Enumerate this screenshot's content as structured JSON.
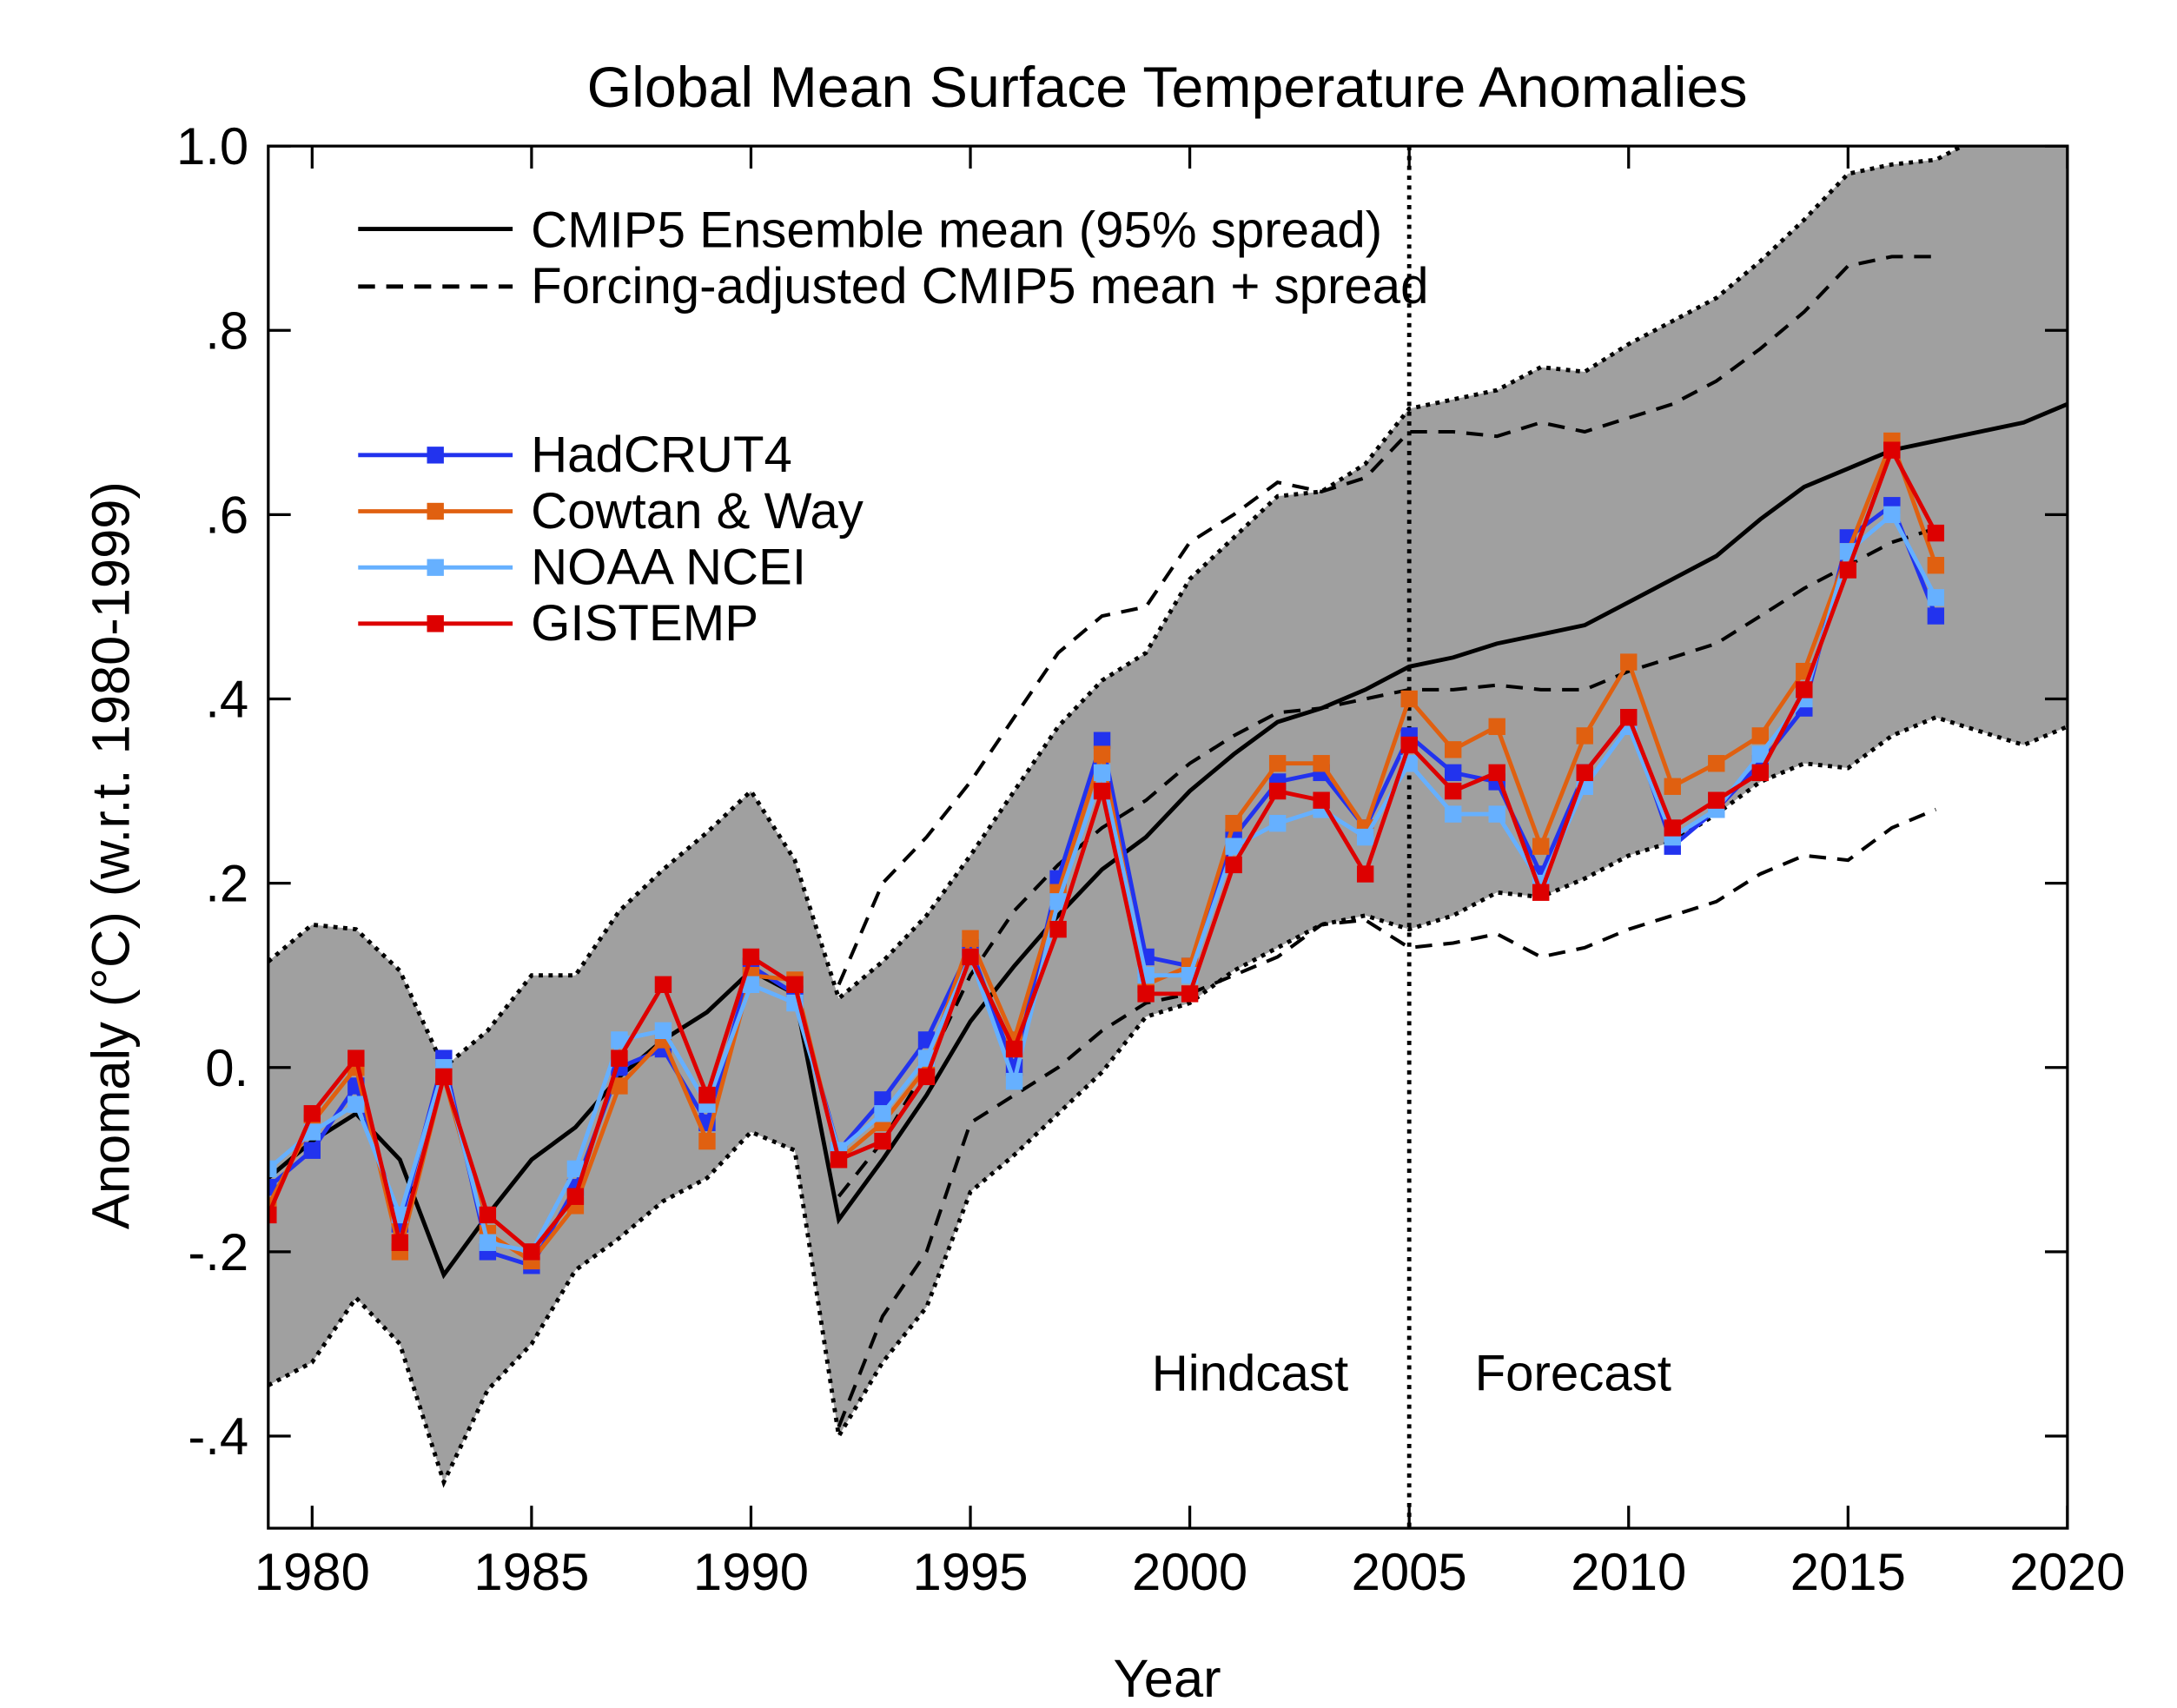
{
  "chart_data": {
    "type": "line",
    "title": "Global Mean Surface Temperature Anomalies",
    "xlabel": "Year",
    "ylabel": "Anomaly (°C) (w.r.t. 1980-1999)",
    "ylabel_parts": {
      "pre": "Anomaly (",
      "sup": "o",
      "post": "C) (w.r.t. 1980-1999)"
    },
    "xlim": [
      1979,
      2020
    ],
    "ylim": [
      -0.5,
      1.0
    ],
    "xticks": [
      1980,
      1985,
      1990,
      1995,
      2000,
      2005,
      2010,
      2015,
      2020
    ],
    "yticks": [
      -0.4,
      -0.2,
      0.0,
      0.2,
      0.4,
      0.6,
      0.8,
      1.0
    ],
    "ytick_labels": [
      "-.4",
      "-.2",
      "0.",
      ".2",
      ".4",
      ".6",
      ".8",
      "1.0"
    ],
    "grid": false,
    "legend_placement": "top-left",
    "annotations": {
      "hindcast": "Hindcast",
      "forecast": "Forecast",
      "divider_year": 2005
    },
    "model": {
      "legend_mean": "CMIP5 Ensemble mean (95% spread)",
      "legend_adjusted": "Forcing-adjusted CMIP5 mean + spread",
      "spread_color": "#a0a0a0",
      "years": [
        1979,
        1980,
        1981,
        1982,
        1983,
        1984,
        1985,
        1986,
        1987,
        1988,
        1989,
        1990,
        1991,
        1992,
        1993,
        1994,
        1995,
        1996,
        1997,
        1998,
        1999,
        2000,
        2001,
        2002,
        2003,
        2004,
        2005,
        2006,
        2007,
        2008,
        2009,
        2010,
        2011,
        2012,
        2013,
        2014,
        2015,
        2016,
        2017,
        2018,
        2019,
        2020
      ],
      "mean": [
        -0.12,
        -0.08,
        -0.05,
        -0.1,
        -0.225,
        -0.16,
        -0.1,
        -0.065,
        -0.01,
        0.03,
        0.06,
        0.105,
        0.08,
        -0.165,
        -0.1,
        -0.03,
        0.05,
        0.11,
        0.165,
        0.215,
        0.25,
        0.3,
        0.34,
        0.375,
        0.39,
        0.41,
        0.435,
        0.445,
        0.46,
        0.47,
        0.48,
        0.505,
        0.53,
        0.555,
        0.595,
        0.63,
        0.65,
        0.67,
        0.68,
        0.69,
        0.7,
        0.72
      ],
      "upper": [
        0.115,
        0.155,
        0.15,
        0.105,
        0.0,
        0.04,
        0.1,
        0.1,
        0.17,
        0.215,
        0.255,
        0.3,
        0.225,
        0.075,
        0.115,
        0.165,
        0.23,
        0.3,
        0.37,
        0.42,
        0.45,
        0.53,
        0.575,
        0.62,
        0.625,
        0.655,
        0.715,
        0.725,
        0.735,
        0.76,
        0.755,
        0.785,
        0.81,
        0.835,
        0.875,
        0.92,
        0.97,
        0.98,
        0.985,
        1.01,
        1.05,
        1.08
      ],
      "lower": [
        -0.345,
        -0.32,
        -0.25,
        -0.3,
        -0.45,
        -0.35,
        -0.3,
        -0.22,
        -0.185,
        -0.145,
        -0.12,
        -0.07,
        -0.09,
        -0.4,
        -0.32,
        -0.26,
        -0.135,
        -0.095,
        -0.05,
        -0.005,
        0.055,
        0.07,
        0.105,
        0.13,
        0.155,
        0.165,
        0.15,
        0.165,
        0.19,
        0.185,
        0.205,
        0.23,
        0.245,
        0.275,
        0.31,
        0.33,
        0.325,
        0.36,
        0.38,
        0.365,
        0.35,
        0.37
      ]
    },
    "adjusted": {
      "years": [
        1992,
        1993,
        1994,
        1995,
        1996,
        1997,
        1998,
        1999,
        2000,
        2001,
        2002,
        2003,
        2004,
        2005,
        2006,
        2007,
        2008,
        2009,
        2010,
        2011,
        2012,
        2013,
        2014,
        2015,
        2016,
        2017
      ],
      "mean": [
        -0.14,
        -0.08,
        0.0,
        0.1,
        0.17,
        0.22,
        0.26,
        0.29,
        0.33,
        0.36,
        0.385,
        0.39,
        0.4,
        0.41,
        0.41,
        0.415,
        0.41,
        0.41,
        0.43,
        0.445,
        0.46,
        0.49,
        0.52,
        0.545,
        0.57,
        0.585
      ],
      "upper": [
        0.09,
        0.2,
        0.25,
        0.31,
        0.38,
        0.45,
        0.49,
        0.5,
        0.57,
        0.6,
        0.635,
        0.625,
        0.64,
        0.69,
        0.69,
        0.685,
        0.7,
        0.69,
        0.705,
        0.72,
        0.745,
        0.78,
        0.82,
        0.87,
        0.88,
        0.88
      ],
      "lower": [
        -0.39,
        -0.27,
        -0.2,
        -0.06,
        -0.03,
        0.0,
        0.04,
        0.07,
        0.08,
        0.1,
        0.12,
        0.155,
        0.16,
        0.13,
        0.135,
        0.145,
        0.12,
        0.13,
        0.15,
        0.165,
        0.18,
        0.21,
        0.23,
        0.225,
        0.26,
        0.28
      ]
    },
    "x": [
      1979,
      1980,
      1981,
      1982,
      1983,
      1984,
      1985,
      1986,
      1987,
      1988,
      1989,
      1990,
      1991,
      1992,
      1993,
      1994,
      1995,
      1996,
      1997,
      1998,
      1999,
      2000,
      2001,
      2002,
      2003,
      2004,
      2005,
      2006,
      2007,
      2008,
      2009,
      2010,
      2011,
      2012,
      2013,
      2014,
      2015,
      2016,
      2017
    ],
    "series": [
      {
        "name": "HadCRUT4",
        "color": "#2233ee",
        "values": [
          -0.13,
          -0.09,
          -0.02,
          -0.17,
          0.01,
          -0.2,
          -0.215,
          -0.13,
          0.0,
          0.02,
          -0.06,
          0.11,
          0.08,
          -0.09,
          -0.035,
          0.03,
          0.13,
          0.0,
          0.205,
          0.355,
          0.12,
          0.11,
          0.25,
          0.31,
          0.32,
          0.26,
          0.36,
          0.32,
          0.31,
          0.21,
          0.32,
          0.38,
          0.24,
          0.28,
          0.33,
          0.39,
          0.575,
          0.61,
          0.49
        ]
      },
      {
        "name": "Cowtan & Way",
        "color": "#e06010",
        "values": [
          -0.15,
          -0.06,
          0.0,
          -0.2,
          -0.01,
          -0.18,
          -0.21,
          -0.15,
          -0.02,
          0.03,
          -0.08,
          0.1,
          0.095,
          -0.1,
          -0.06,
          0.0,
          0.14,
          0.03,
          0.19,
          0.34,
          0.09,
          0.11,
          0.265,
          0.33,
          0.33,
          0.26,
          0.4,
          0.345,
          0.37,
          0.24,
          0.36,
          0.44,
          0.305,
          0.33,
          0.36,
          0.43,
          0.56,
          0.68,
          0.545
        ]
      },
      {
        "name": "NOAA NCEI",
        "color": "#66b0ff",
        "values": [
          -0.11,
          -0.07,
          -0.04,
          -0.16,
          0.0,
          -0.19,
          -0.2,
          -0.11,
          0.03,
          0.04,
          -0.04,
          0.09,
          0.07,
          -0.09,
          -0.05,
          0.01,
          0.12,
          -0.015,
          0.18,
          0.32,
          0.1,
          0.1,
          0.24,
          0.265,
          0.28,
          0.25,
          0.33,
          0.275,
          0.275,
          0.2,
          0.305,
          0.37,
          0.25,
          0.28,
          0.34,
          0.4,
          0.56,
          0.6,
          0.51
        ]
      },
      {
        "name": "GISTEMP",
        "color": "#dd0000",
        "values": [
          -0.16,
          -0.05,
          0.01,
          -0.19,
          -0.01,
          -0.16,
          -0.2,
          -0.14,
          0.01,
          0.09,
          -0.03,
          0.12,
          0.09,
          -0.1,
          -0.08,
          -0.01,
          0.12,
          0.02,
          0.15,
          0.3,
          0.08,
          0.08,
          0.22,
          0.3,
          0.29,
          0.21,
          0.35,
          0.3,
          0.32,
          0.19,
          0.32,
          0.38,
          0.26,
          0.29,
          0.32,
          0.41,
          0.54,
          0.67,
          0.58
        ]
      }
    ]
  }
}
